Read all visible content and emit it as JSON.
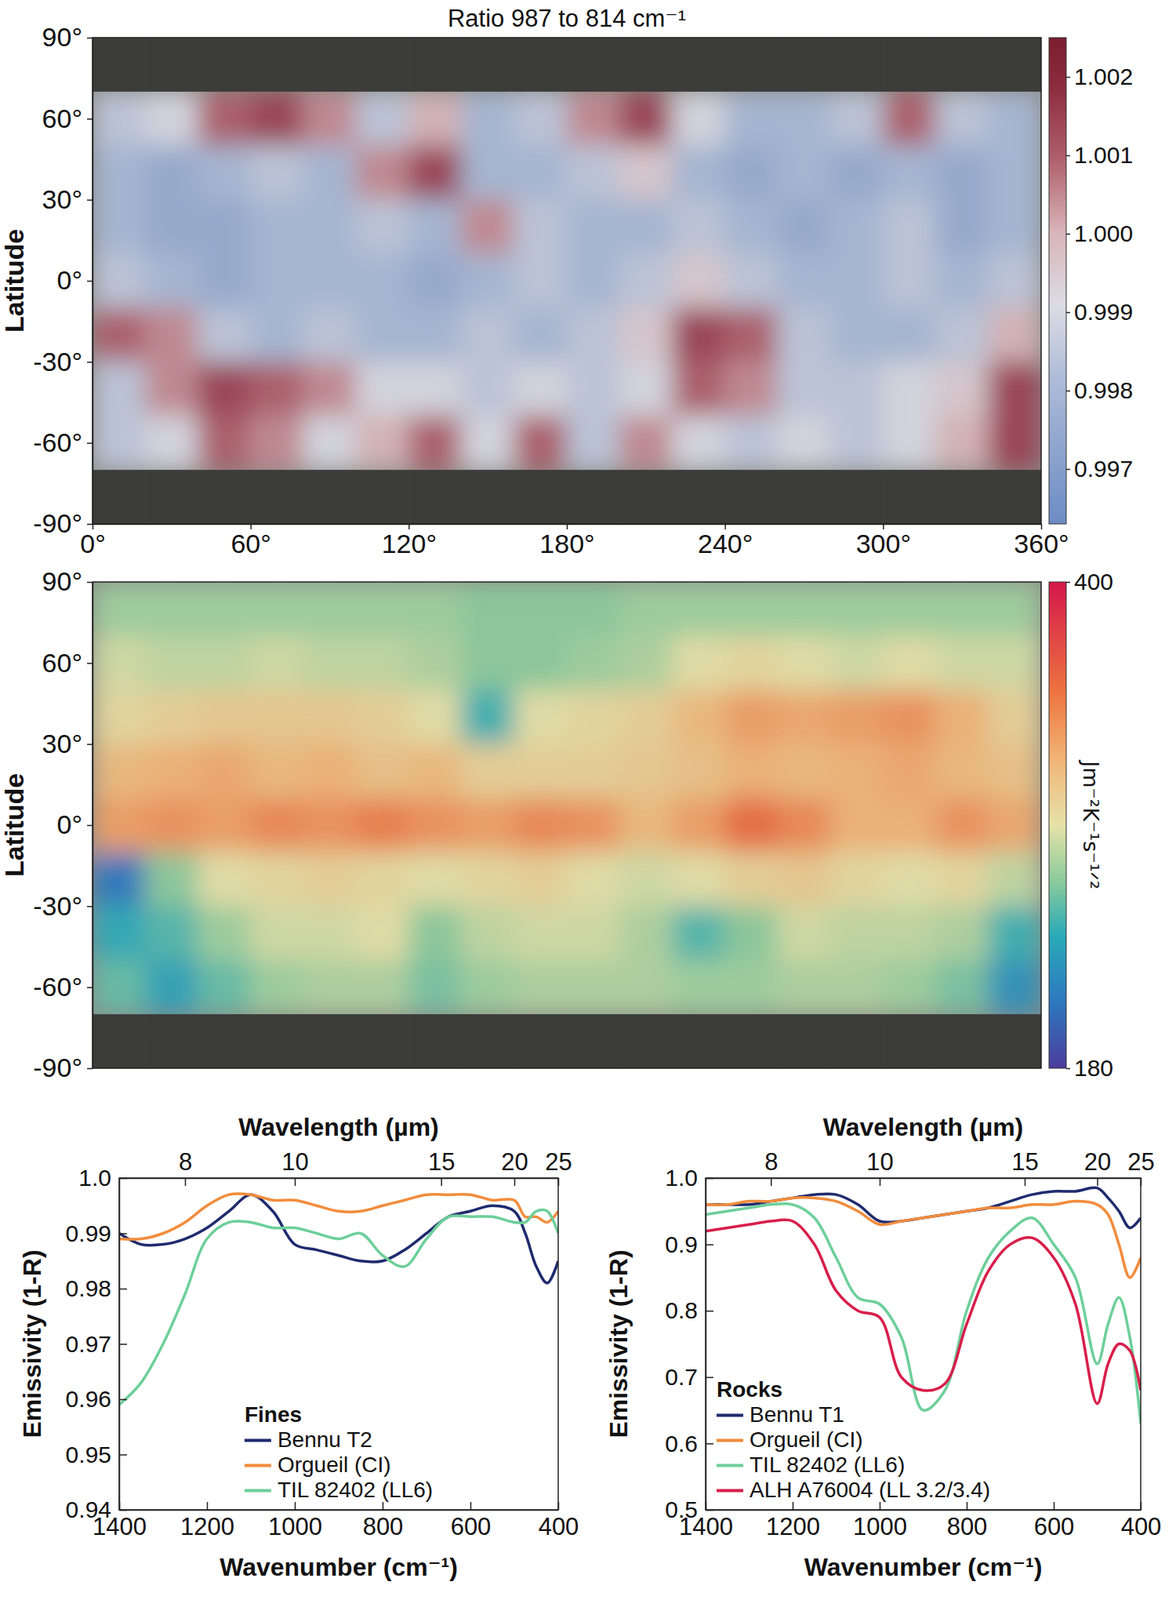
{
  "chart_data": [
    {
      "type": "heatmap",
      "title": "Ratio 987 to 814 cm⁻¹",
      "ylabel": "Latitude",
      "x": [
        10,
        30,
        50,
        70,
        90,
        110,
        130,
        150,
        170,
        190,
        210,
        230,
        250,
        270,
        290,
        310,
        330,
        350
      ],
      "y": [
        80,
        60,
        40,
        20,
        0,
        -20,
        -40,
        -60,
        -80
      ],
      "values": [
        [
          null,
          null,
          null,
          null,
          null,
          null,
          null,
          null,
          null,
          null,
          null,
          null,
          null,
          null,
          null,
          null,
          null,
          null
        ],
        [
          0.9985,
          0.999,
          1.001,
          1.0015,
          1.0005,
          0.9985,
          1.0,
          0.998,
          0.9985,
          1.0005,
          1.0015,
          0.999,
          0.998,
          0.998,
          0.9985,
          1.001,
          0.9985,
          0.998
        ],
        [
          0.998,
          0.9975,
          0.998,
          0.9985,
          0.998,
          1.0005,
          1.0015,
          0.998,
          0.998,
          0.9985,
          0.9995,
          0.998,
          0.9975,
          0.998,
          0.9975,
          0.998,
          0.9975,
          0.998
        ],
        [
          0.998,
          0.9975,
          0.9975,
          0.998,
          0.998,
          0.9985,
          0.998,
          1.0005,
          0.9985,
          0.998,
          0.998,
          0.9985,
          0.998,
          0.9975,
          0.998,
          0.9985,
          0.9975,
          0.998
        ],
        [
          0.9985,
          0.998,
          0.9975,
          0.998,
          0.998,
          0.998,
          0.9975,
          0.998,
          0.9985,
          0.998,
          0.9985,
          0.9995,
          0.9985,
          0.998,
          0.998,
          0.9985,
          0.998,
          0.9985
        ],
        [
          1.001,
          1.0005,
          0.9985,
          0.998,
          0.9985,
          0.998,
          0.998,
          0.9985,
          0.998,
          0.9985,
          0.9995,
          1.0015,
          1.001,
          0.9985,
          0.998,
          0.998,
          0.9985,
          1.0
        ],
        [
          0.9985,
          1.0005,
          1.0015,
          1.001,
          1.0005,
          0.999,
          0.999,
          0.9985,
          0.999,
          0.9985,
          0.999,
          1.001,
          1.0005,
          0.9985,
          0.9985,
          0.999,
          0.9995,
          1.0015
        ],
        [
          0.9985,
          0.999,
          1.001,
          1.0005,
          0.999,
          1.0,
          1.001,
          0.999,
          1.001,
          0.9985,
          1.0005,
          0.999,
          0.9985,
          0.999,
          0.9985,
          0.999,
          1.0,
          1.0015
        ],
        [
          null,
          null,
          null,
          null,
          null,
          null,
          null,
          null,
          null,
          null,
          null,
          null,
          null,
          null,
          null,
          null,
          null,
          null
        ]
      ],
      "xlim": [
        0,
        360
      ],
      "ylim": [
        -90,
        90
      ],
      "xticks": [
        {
          "value": 0,
          "label": "0°"
        },
        {
          "value": 60,
          "label": "60°"
        },
        {
          "value": 120,
          "label": "120°"
        },
        {
          "value": 180,
          "label": "180°"
        },
        {
          "value": 240,
          "label": "240°"
        },
        {
          "value": 300,
          "label": "300°"
        },
        {
          "value": 360,
          "label": "360°"
        }
      ],
      "yticks": [
        {
          "value": 90,
          "label": "90°"
        },
        {
          "value": 60,
          "label": "60°"
        },
        {
          "value": 30,
          "label": "30°"
        },
        {
          "value": 0,
          "label": "0°"
        },
        {
          "value": -30,
          "label": "-30°"
        },
        {
          "value": -60,
          "label": "-60°"
        },
        {
          "value": -90,
          "label": "-90°"
        }
      ],
      "colorbar": {
        "range": [
          0.9963,
          1.0025
        ],
        "ticks": [
          0.997,
          0.998,
          0.999,
          {
            "value": 1,
            "label": "1.000"
          },
          1.001,
          1.002
        ]
      }
    },
    {
      "type": "heatmap",
      "ylabel": "Latitude",
      "tick_labels": "y",
      "x": [
        10,
        30,
        50,
        70,
        90,
        110,
        130,
        150,
        170,
        190,
        210,
        230,
        250,
        270,
        290,
        310,
        330,
        350
      ],
      "y": [
        80,
        60,
        40,
        20,
        0,
        -20,
        -40,
        -60,
        -80
      ],
      "values": [
        [
          270,
          270,
          270,
          270,
          270,
          270,
          270,
          265,
          265,
          265,
          270,
          270,
          270,
          270,
          270,
          270,
          270,
          270
        ],
        [
          285,
          280,
          280,
          285,
          280,
          280,
          275,
          265,
          265,
          270,
          275,
          290,
          295,
          290,
          285,
          290,
          285,
          285
        ],
        [
          295,
          300,
          305,
          305,
          305,
          300,
          290,
          245,
          290,
          295,
          300,
          315,
          330,
          325,
          330,
          335,
          320,
          300
        ],
        [
          315,
          320,
          325,
          315,
          320,
          310,
          315,
          300,
          300,
          300,
          305,
          310,
          320,
          315,
          320,
          325,
          315,
          310
        ],
        [
          330,
          335,
          330,
          340,
          335,
          345,
          335,
          330,
          340,
          335,
          315,
          330,
          355,
          340,
          320,
          320,
          335,
          325
        ],
        [
          210,
          265,
          290,
          295,
          300,
          295,
          290,
          295,
          300,
          290,
          285,
          290,
          300,
          305,
          295,
          290,
          295,
          280
        ],
        [
          240,
          250,
          270,
          285,
          285,
          290,
          265,
          280,
          285,
          285,
          275,
          250,
          265,
          285,
          280,
          280,
          275,
          245
        ],
        [
          255,
          235,
          255,
          270,
          275,
          275,
          260,
          270,
          275,
          275,
          275,
          270,
          270,
          275,
          275,
          270,
          260,
          225
        ],
        [
          null,
          null,
          null,
          null,
          null,
          null,
          null,
          null,
          null,
          null,
          null,
          null,
          null,
          null,
          null,
          null,
          null,
          null
        ]
      ],
      "xlim": [
        0,
        360
      ],
      "ylim": [
        -90,
        90
      ],
      "yticks": [
        {
          "value": 90,
          "label": "90°"
        },
        {
          "value": 60,
          "label": "60°"
        },
        {
          "value": 30,
          "label": "30°"
        },
        {
          "value": 0,
          "label": "0°"
        },
        {
          "value": -30,
          "label": "-30°"
        },
        {
          "value": -60,
          "label": "-60°"
        },
        {
          "value": -90,
          "label": "-90°"
        }
      ],
      "colorbar": {
        "range": [
          180,
          400
        ],
        "ticks": [
          180,
          400
        ],
        "label": "Jm⁻²K⁻¹s⁻¹ᐟ²"
      }
    },
    {
      "type": "line",
      "xlabel": "Wavenumber (cm⁻¹)",
      "x2label": "Wavelength (µm)",
      "ylabel": "Emissivity (1-R)",
      "legend_title": "Fines",
      "legend": "lower center",
      "x": [
        1400,
        1350,
        1300,
        1250,
        1200,
        1150,
        1100,
        1050,
        1000,
        950,
        900,
        850,
        800,
        750,
        700,
        650,
        600,
        550,
        500,
        475,
        450,
        425,
        400
      ],
      "series": [
        {
          "name": "Bennu T2",
          "color": "#1f2b6e",
          "values": [
            0.99,
            0.988,
            0.988,
            0.989,
            0.991,
            0.994,
            0.997,
            0.994,
            0.988,
            0.987,
            0.986,
            0.985,
            0.985,
            0.987,
            0.99,
            0.993,
            0.994,
            0.995,
            0.994,
            0.99,
            0.984,
            0.981,
            0.985
          ]
        },
        {
          "name": "Orgueil (CI)",
          "color": "#f28c3c",
          "values": [
            0.989,
            0.989,
            0.99,
            0.992,
            0.995,
            0.997,
            0.997,
            0.996,
            0.996,
            0.995,
            0.994,
            0.994,
            0.995,
            0.996,
            0.997,
            0.997,
            0.997,
            0.996,
            0.996,
            0.993,
            0.993,
            0.992,
            0.994
          ]
        },
        {
          "name": "TIL 82402 (LL6)",
          "color": "#6dcf9a",
          "values": [
            0.959,
            0.963,
            0.97,
            0.979,
            0.989,
            0.992,
            0.992,
            0.991,
            0.991,
            0.99,
            0.989,
            0.99,
            0.986,
            0.984,
            0.989,
            0.993,
            0.993,
            0.993,
            0.992,
            0.992,
            0.994,
            0.994,
            0.99
          ]
        }
      ],
      "xlim": [
        1400,
        400
      ],
      "ylim": [
        0.94,
        1.0
      ],
      "xticks": [
        1400,
        1200,
        1000,
        800,
        600,
        400
      ],
      "x2ticks": [
        {
          "value": 1250,
          "label": "8"
        },
        {
          "value": 1000,
          "label": "10"
        },
        {
          "value": 666.67,
          "label": "15"
        },
        {
          "value": 500,
          "label": "20"
        },
        {
          "value": 400,
          "label": "25"
        }
      ],
      "yticks": [
        0.94,
        0.95,
        0.96,
        0.97,
        0.98,
        0.99,
        {
          "value": 1,
          "label": "1.0"
        }
      ]
    },
    {
      "type": "line",
      "xlabel": "Wavenumber (cm⁻¹)",
      "x2label": "Wavelength (µm)",
      "ylabel": "Emissivity (1-R)",
      "legend_title": "Rocks",
      "legend": "lower left",
      "x": [
        1400,
        1350,
        1300,
        1250,
        1200,
        1150,
        1100,
        1050,
        1000,
        950,
        900,
        850,
        800,
        750,
        700,
        650,
        600,
        550,
        500,
        475,
        450,
        425,
        400
      ],
      "series": [
        {
          "name": "Bennu T1",
          "color": "#1f2b6e",
          "values": [
            0.96,
            0.96,
            0.96,
            0.965,
            0.97,
            0.975,
            0.975,
            0.96,
            0.935,
            0.935,
            0.94,
            0.945,
            0.95,
            0.955,
            0.965,
            0.975,
            0.98,
            0.98,
            0.985,
            0.97,
            0.95,
            0.925,
            0.94
          ]
        },
        {
          "name": "Orgueil (CI)",
          "color": "#f28c3c",
          "values": [
            0.96,
            0.96,
            0.965,
            0.965,
            0.97,
            0.97,
            0.965,
            0.95,
            0.93,
            0.935,
            0.94,
            0.945,
            0.95,
            0.955,
            0.955,
            0.96,
            0.96,
            0.965,
            0.96,
            0.945,
            0.9,
            0.85,
            0.88
          ]
        },
        {
          "name": "TIL 82402 (LL6)",
          "color": "#6dcf9a",
          "values": [
            0.945,
            0.95,
            0.955,
            0.96,
            0.96,
            0.94,
            0.88,
            0.82,
            0.81,
            0.76,
            0.65,
            0.68,
            0.8,
            0.88,
            0.92,
            0.94,
            0.9,
            0.85,
            0.72,
            0.78,
            0.82,
            0.76,
            0.63
          ]
        },
        {
          "name": "ALH A76004 (LL 3.2/3.4)",
          "color": "#d81e4a",
          "values": [
            0.92,
            0.925,
            0.93,
            0.935,
            0.935,
            0.9,
            0.83,
            0.8,
            0.79,
            0.7,
            0.68,
            0.69,
            0.78,
            0.86,
            0.9,
            0.91,
            0.88,
            0.81,
            0.66,
            0.72,
            0.75,
            0.74,
            0.68
          ]
        }
      ],
      "xlim": [
        1400,
        400
      ],
      "ylim": [
        0.5,
        1.0
      ],
      "xticks": [
        1400,
        1200,
        1000,
        800,
        600,
        400
      ],
      "x2ticks": [
        {
          "value": 1250,
          "label": "8"
        },
        {
          "value": 1000,
          "label": "10"
        },
        {
          "value": 666.67,
          "label": "15"
        },
        {
          "value": 500,
          "label": "20"
        },
        {
          "value": 400,
          "label": "25"
        }
      ],
      "yticks": [
        0.5,
        0.6,
        0.7,
        0.8,
        0.9,
        {
          "value": 1,
          "label": "1.0"
        }
      ]
    }
  ]
}
